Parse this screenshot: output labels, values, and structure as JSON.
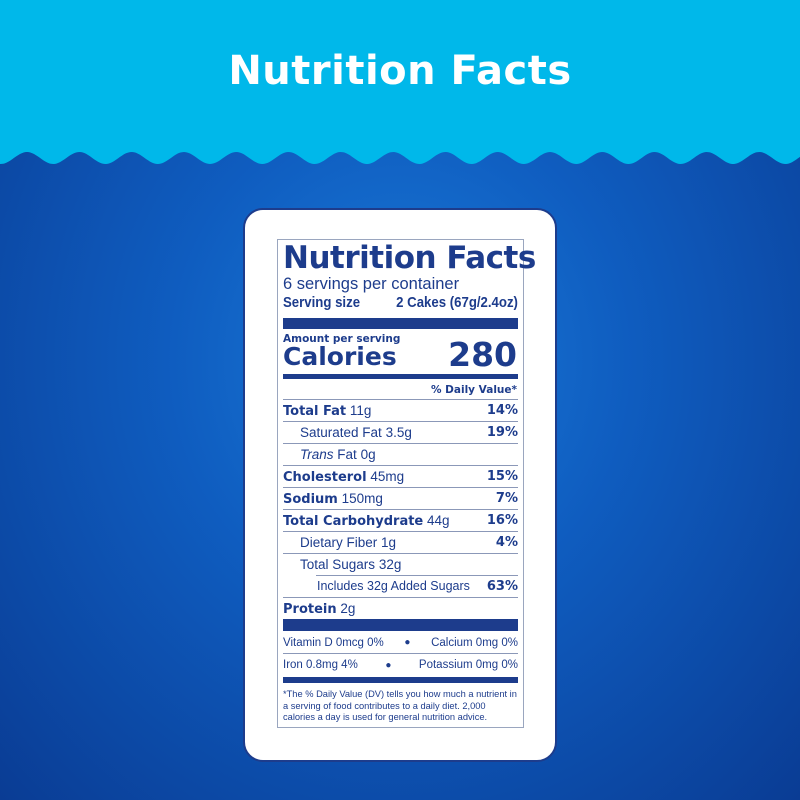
{
  "banner": {
    "title": "Nutrition Facts",
    "colors": {
      "top": "#00b8ea",
      "bottom": "#0a3c94",
      "text": "#1d3c8c"
    }
  },
  "label": {
    "title": "Nutrition Facts",
    "servings_per_container": "6 servings per container",
    "serving_size_label": "Serving size",
    "serving_size_value": "2 Cakes (67g/2.4oz)",
    "amount_per_serving": "Amount per serving",
    "calories_label": "Calories",
    "calories_value": "280",
    "daily_value_header": "% Daily Value*",
    "nutrients": [
      {
        "name": "Total Fat",
        "amount": "11g",
        "dv": "14%"
      },
      {
        "name": "Saturated Fat",
        "amount": "3.5g",
        "dv": "19%"
      },
      {
        "name_italic": "Trans",
        "name": "Fat",
        "amount": "0g",
        "dv": ""
      },
      {
        "name": "Cholesterol",
        "amount": "45mg",
        "dv": "15%"
      },
      {
        "name": "Sodium",
        "amount": "150mg",
        "dv": "7%"
      },
      {
        "name": "Total Carbohydrate",
        "amount": "44g",
        "dv": "16%"
      },
      {
        "name": "Dietary Fiber",
        "amount": "1g",
        "dv": "4%"
      },
      {
        "name": "Total Sugars",
        "amount": "32g",
        "dv": ""
      },
      {
        "name": "Includes 32g Added Sugars",
        "amount": "",
        "dv": "63%"
      },
      {
        "name": "Protein",
        "amount": "2g",
        "dv": ""
      }
    ],
    "vitamins": [
      {
        "left": "Vitamin D 0mcg 0%",
        "right": "Calcium 0mg 0%"
      },
      {
        "left": "Iron 0.8mg 4%",
        "right": "Potassium 0mg 0%"
      }
    ],
    "footnote": "*The % Daily Value (DV) tells you how much a nutrient in a serving of food contributes to a daily diet. 2,000 calories a day is used for general nutrition advice."
  }
}
